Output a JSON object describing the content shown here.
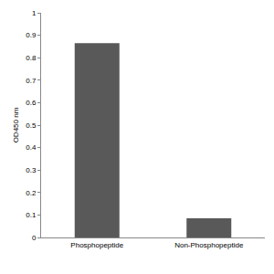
{
  "chart_data": {
    "type": "bar",
    "y_label": "OD450 nm",
    "categories": [
      "Phosphopeptide",
      "Non-Phosphopeptide"
    ],
    "values": [
      0.865,
      0.085
    ],
    "color": "#595959",
    "ylim": [
      0,
      1
    ],
    "yticks": [
      0,
      0.1,
      0.2,
      0.3,
      0.4,
      0.5,
      0.6,
      0.7,
      0.8,
      0.9,
      1
    ],
    "grid": false
  }
}
